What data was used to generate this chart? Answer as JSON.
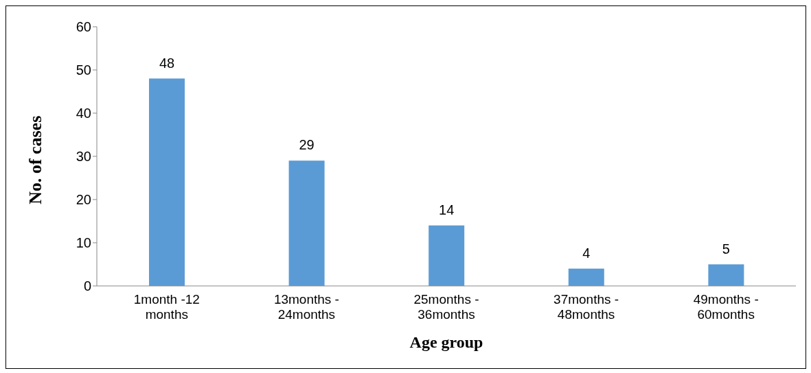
{
  "chart_data": {
    "type": "bar",
    "xlabel": "Age group",
    "ylabel": "No. of cases",
    "categories": [
      "1month -12\nmonths",
      "13months -\n24months",
      "25months -\n36months",
      "37months -\n48months",
      "49months -\n60months"
    ],
    "values": [
      48,
      29,
      14,
      4,
      5
    ],
    "color": "#5b9bd5",
    "data_labels": true,
    "ylim": [
      0,
      60
    ],
    "yticks": [
      0,
      10,
      20,
      30,
      40,
      50,
      60
    ],
    "grid": false
  }
}
